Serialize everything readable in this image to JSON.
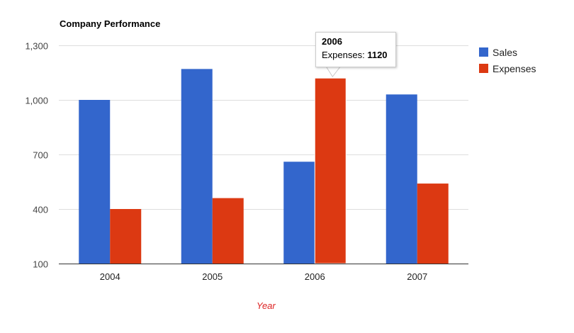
{
  "chart_data": {
    "type": "bar",
    "title": "Company Performance",
    "xlabel": "Year",
    "ylabel": "",
    "categories": [
      "2004",
      "2005",
      "2006",
      "2007"
    ],
    "series": [
      {
        "name": "Sales",
        "color": "#3366cc",
        "values": [
          1000,
          1170,
          660,
          1030
        ]
      },
      {
        "name": "Expenses",
        "color": "#dc3912",
        "values": [
          400,
          460,
          1120,
          540
        ]
      }
    ],
    "ylim": [
      100,
      1300
    ],
    "yticks": [
      "100",
      "400",
      "700",
      "1,000",
      "1,300"
    ],
    "ytick_values": [
      100,
      400,
      700,
      1000,
      1300
    ],
    "grid": true,
    "legend_position": "right",
    "xlabel_color": "#dd2222",
    "tooltip": {
      "title": "2006",
      "label": "Expenses:",
      "value": "1120"
    }
  }
}
